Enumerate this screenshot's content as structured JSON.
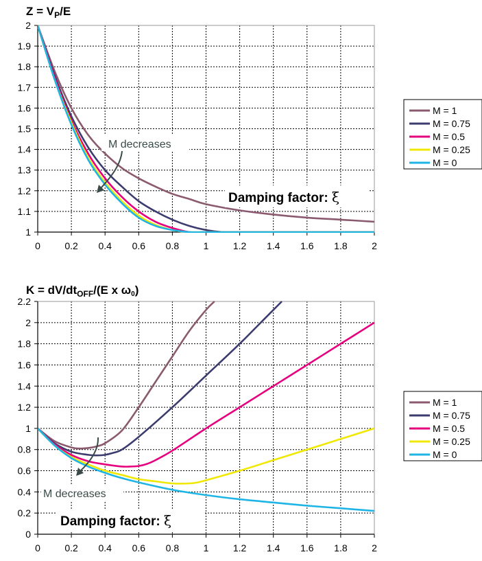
{
  "charts": {
    "top": {
      "title_main": "Z = V",
      "title_sub": "P",
      "title_end": "/E",
      "annotation": "M decreases",
      "damping_label": "Damping factor: ",
      "xi": "ξ",
      "x_ticks": [
        "0",
        "0.2",
        "0.4",
        "0.6",
        "0.8",
        "1",
        "1.2",
        "1.4",
        "1.6",
        "1.8",
        "2"
      ],
      "y_ticks": [
        "1",
        "1.1",
        "1.2",
        "1.3",
        "1.4",
        "1.5",
        "1.6",
        "1.7",
        "1.8",
        "1.9",
        "2"
      ],
      "legend": [
        "M = 1",
        "M = 0.75",
        "M = 0.5",
        "M = 0.25",
        "M = 0"
      ]
    },
    "bottom": {
      "title_main": "K = dV/dt",
      "title_sub": "OFF",
      "title_end": "/(E x ω",
      "title_sub2": "0",
      "title_close": ")",
      "annotation": "M decreases",
      "damping_label": "Damping factor: ",
      "xi": "ξ",
      "x_ticks": [
        "0",
        "0.2",
        "0.4",
        "0.6",
        "0.8",
        "1",
        "1.2",
        "1.4",
        "1.6",
        "1.8",
        "2"
      ],
      "y_ticks": [
        "0",
        "0.2",
        "0.4",
        "0.6",
        "0.8",
        "1",
        "1.2",
        "1.4",
        "1.6",
        "1.8",
        "2",
        "2.2"
      ],
      "legend": [
        "M = 1",
        "M = 0.75",
        "M = 0.5",
        "M = 0.25",
        "M = 0"
      ]
    }
  },
  "chart_data": [
    {
      "type": "line",
      "title": "Z = VP/E",
      "xlabel": "Damping factor: ξ",
      "ylabel": "",
      "xlim": [
        0,
        2
      ],
      "ylim": [
        1,
        2
      ],
      "grid": true,
      "legend_position": "right",
      "series": [
        {
          "name": "M = 1",
          "color": "#8b5a6e",
          "x": [
            0,
            0.1,
            0.2,
            0.3,
            0.4,
            0.5,
            0.6,
            0.7,
            0.8,
            0.9,
            1.0,
            1.2,
            1.4,
            1.6,
            1.8,
            2.0
          ],
          "y": [
            2,
            1.78,
            1.6,
            1.47,
            1.38,
            1.31,
            1.26,
            1.22,
            1.185,
            1.16,
            1.135,
            1.105,
            1.085,
            1.07,
            1.06,
            1.05
          ]
        },
        {
          "name": "M = 0.75",
          "color": "#3b3b6e",
          "x": [
            0,
            0.1,
            0.2,
            0.3,
            0.4,
            0.5,
            0.6,
            0.7,
            0.8,
            0.9,
            1.0,
            1.1,
            1.2,
            1.4,
            1.6,
            1.8,
            2.0
          ],
          "y": [
            2,
            1.76,
            1.56,
            1.41,
            1.3,
            1.22,
            1.15,
            1.1,
            1.06,
            1.03,
            1.01,
            1.0,
            1.0,
            1.0,
            1.0,
            1.0,
            1.0
          ]
        },
        {
          "name": "M = 0.5",
          "color": "#e6007e",
          "x": [
            0,
            0.1,
            0.2,
            0.3,
            0.4,
            0.5,
            0.6,
            0.7,
            0.8,
            0.9,
            1.0,
            1.2,
            1.4,
            1.6,
            1.8,
            2.0
          ],
          "y": [
            2,
            1.75,
            1.54,
            1.38,
            1.26,
            1.17,
            1.1,
            1.05,
            1.02,
            1.0,
            1.0,
            1.0,
            1.0,
            1.0,
            1.0,
            1.0
          ]
        },
        {
          "name": "M = 0.25",
          "color": "#f0e800",
          "x": [
            0,
            0.1,
            0.2,
            0.3,
            0.4,
            0.5,
            0.6,
            0.7,
            0.8,
            0.9,
            1.0,
            1.2,
            1.4,
            1.6,
            1.8,
            2.0
          ],
          "y": [
            2,
            1.74,
            1.53,
            1.36,
            1.24,
            1.15,
            1.08,
            1.035,
            1.01,
            1.0,
            1.0,
            1.0,
            1.0,
            1.0,
            1.0,
            1.0
          ]
        },
        {
          "name": "M = 0",
          "color": "#1fb4e6",
          "x": [
            0,
            0.1,
            0.2,
            0.3,
            0.4,
            0.5,
            0.6,
            0.7,
            0.8,
            0.9,
            1.0,
            1.2,
            1.4,
            1.6,
            1.8,
            2.0
          ],
          "y": [
            2,
            1.74,
            1.52,
            1.35,
            1.23,
            1.14,
            1.07,
            1.03,
            1.01,
            1.0,
            1.0,
            1.0,
            1.0,
            1.0,
            1.0,
            1.0
          ]
        }
      ]
    },
    {
      "type": "line",
      "title": "K = dV/dtOFF/(E x ω0)",
      "xlabel": "Damping factor: ξ",
      "ylabel": "",
      "xlim": [
        0,
        2
      ],
      "ylim": [
        0,
        2.2
      ],
      "grid": true,
      "legend_position": "right",
      "series": [
        {
          "name": "M = 1",
          "color": "#8b5a6e",
          "x": [
            0,
            0.1,
            0.2,
            0.25,
            0.3,
            0.35,
            0.4,
            0.5,
            0.6,
            0.7,
            0.8,
            0.9,
            1.0,
            1.05
          ],
          "y": [
            1,
            0.88,
            0.82,
            0.81,
            0.815,
            0.83,
            0.86,
            0.98,
            1.2,
            1.44,
            1.68,
            1.92,
            2.12,
            2.2
          ]
        },
        {
          "name": "M = 0.75",
          "color": "#3b3b6e",
          "x": [
            0,
            0.1,
            0.2,
            0.3,
            0.35,
            0.4,
            0.45,
            0.5,
            0.6,
            0.8,
            1.0,
            1.2,
            1.3,
            1.45
          ],
          "y": [
            1,
            0.86,
            0.78,
            0.75,
            0.745,
            0.75,
            0.77,
            0.8,
            0.92,
            1.2,
            1.5,
            1.8,
            1.96,
            2.2
          ]
        },
        {
          "name": "M = 0.5",
          "color": "#e6007e",
          "x": [
            0,
            0.1,
            0.2,
            0.3,
            0.4,
            0.5,
            0.55,
            0.6,
            0.65,
            0.7,
            0.8,
            1.0,
            1.2,
            1.4,
            1.6,
            1.8,
            2.0
          ],
          "y": [
            1,
            0.85,
            0.75,
            0.69,
            0.66,
            0.64,
            0.64,
            0.645,
            0.665,
            0.7,
            0.79,
            1.0,
            1.2,
            1.4,
            1.6,
            1.8,
            2.0
          ]
        },
        {
          "name": "M = 0.25",
          "color": "#f0e800",
          "x": [
            0,
            0.1,
            0.2,
            0.3,
            0.4,
            0.5,
            0.6,
            0.7,
            0.8,
            0.9,
            0.95,
            1.0,
            1.2,
            1.4,
            1.6,
            1.8,
            2.0
          ],
          "y": [
            1,
            0.84,
            0.73,
            0.66,
            0.6,
            0.56,
            0.52,
            0.5,
            0.48,
            0.48,
            0.49,
            0.51,
            0.6,
            0.7,
            0.8,
            0.9,
            1.0
          ]
        },
        {
          "name": "M = 0",
          "color": "#1fb4e6",
          "x": [
            0,
            0.1,
            0.2,
            0.3,
            0.4,
            0.5,
            0.6,
            0.8,
            1.0,
            1.2,
            1.4,
            1.6,
            1.8,
            2.0
          ],
          "y": [
            1,
            0.84,
            0.72,
            0.64,
            0.58,
            0.53,
            0.49,
            0.42,
            0.37,
            0.33,
            0.3,
            0.27,
            0.245,
            0.22
          ]
        }
      ]
    }
  ]
}
